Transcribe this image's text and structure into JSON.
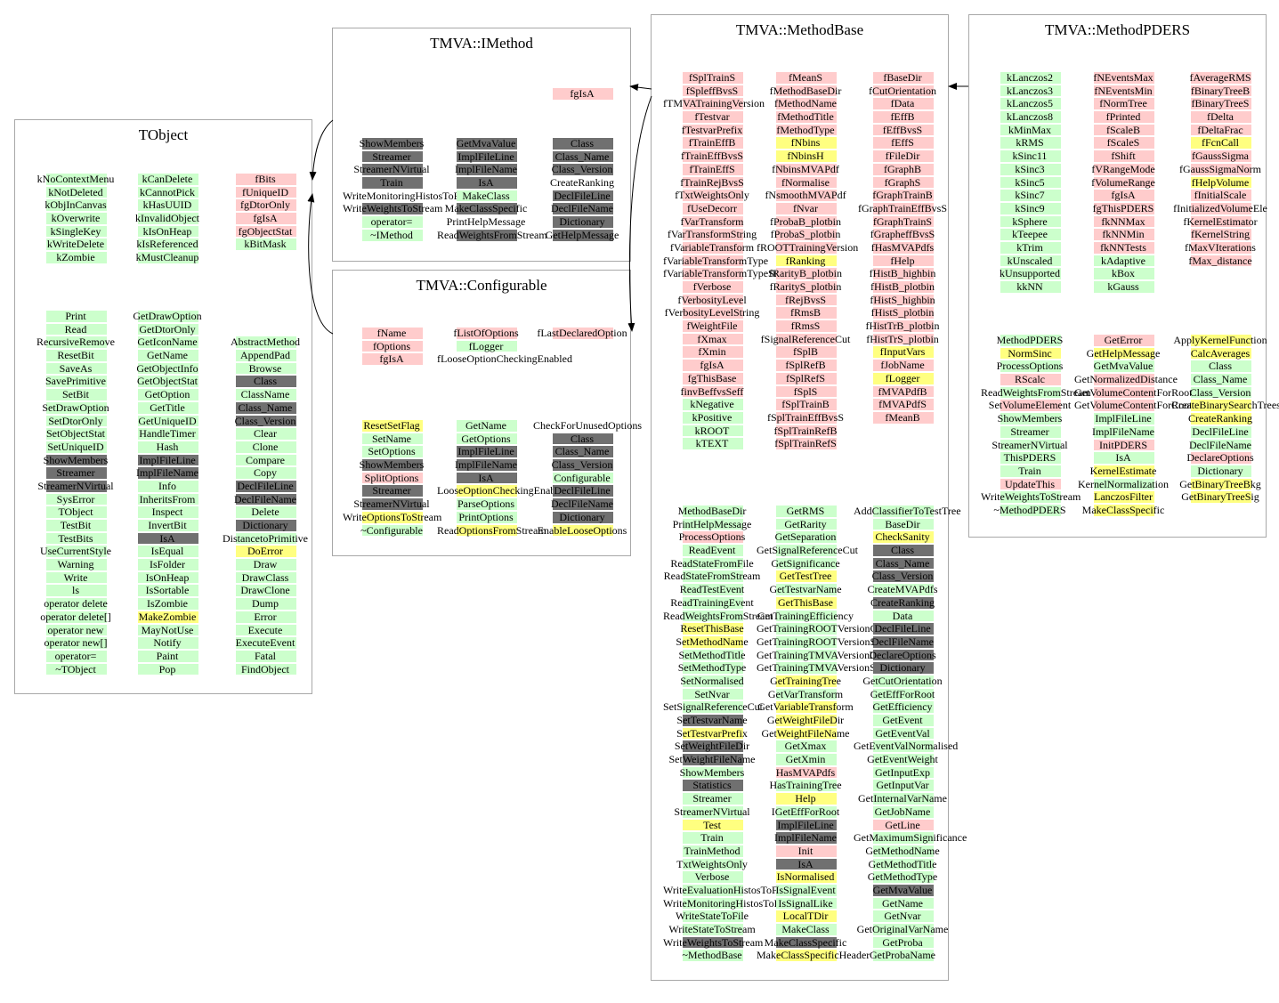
{
  "classes": [
    {
      "title": "TObject",
      "sections": [
        [
          [
            "kNoContextMenu",
            "kNotDeleted",
            "kObjInCanvas",
            "kOverwrite",
            "kSingleKey",
            "kWriteDelete",
            "kZombie"
          ],
          [
            "kCanDelete",
            "kCannotPick",
            "kHasUUID",
            "kInvalidObject",
            "kIsOnHeap",
            "kIsReferenced",
            "kMustCleanup"
          ],
          [
            "fBits",
            "fUniqueID",
            "fgDtorOnly",
            "fgIsA",
            "fgObjectStat",
            "kBitMask"
          ]
        ],
        [
          [
            "Print",
            "Read",
            "RecursiveRemove",
            "ResetBit",
            "SaveAs",
            "SavePrimitive",
            "SetBit",
            "SetDrawOption",
            "SetDtorOnly",
            "SetObjectStat",
            "SetUniqueID",
            "ShowMembers",
            "Streamer",
            "StreamerNVirtual",
            "SysError",
            "TObject",
            "TestBit",
            "TestBits",
            "UseCurrentStyle",
            "Warning",
            "Write",
            "ls",
            "operator delete",
            "operator delete[]",
            "operator new",
            "operator new[]",
            "operator=",
            "~TObject"
          ],
          [
            "GetDrawOption",
            "GetDtorOnly",
            "GetIconName",
            "GetName",
            "GetObjectInfo",
            "GetObjectStat",
            "GetOption",
            "GetTitle",
            "GetUniqueID",
            "HandleTimer",
            "Hash",
            "ImplFileLine",
            "ImplFileName",
            "Info",
            "InheritsFrom",
            "Inspect",
            "InvertBit",
            "IsA",
            "IsEqual",
            "IsFolder",
            "IsOnHeap",
            "IsSortable",
            "IsZombie",
            "MakeZombie",
            "MayNotUse",
            "Notify",
            "Paint",
            "Pop"
          ],
          [
            "",
            "",
            "AbstractMethod",
            "AppendPad",
            "Browse",
            "Class",
            "ClassName",
            "Class_Name",
            "Class_Version",
            "Clear",
            "Clone",
            "Compare",
            "Copy",
            "DeclFileLine",
            "DeclFileName",
            "Delete",
            "Dictionary",
            "DistancetoPrimitive",
            "DoError",
            "Draw",
            "DrawClass",
            "DrawClone",
            "Dump",
            "Error",
            "Execute",
            "ExecuteEvent",
            "Fatal",
            "FindObject"
          ]
        ]
      ]
    },
    {
      "title": "TMVA::IMethod",
      "sections": [
        [
          [],
          [],
          [
            "fgIsA"
          ]
        ],
        [
          [
            "ShowMembers",
            "Streamer",
            "StreamerNVirtual",
            "Train",
            "WriteMonitoringHistosToFile",
            "WriteWeightsToStream",
            "operator=",
            "~IMethod"
          ],
          [
            "GetMvaValue",
            "ImplFileLine",
            "ImplFileName",
            "IsA",
            "MakeClass",
            "MakeClassSpecific",
            "PrintHelpMessage",
            "ReadWeightsFromStream"
          ],
          [
            "Class",
            "Class_Name",
            "Class_Version",
            "CreateRanking",
            "DeclFileLine",
            "DeclFileName",
            "Dictionary",
            "GetHelpMessage"
          ]
        ]
      ]
    },
    {
      "title": "TMVA::Configurable",
      "sections": [
        [
          [
            "fName",
            "fOptions",
            "fgIsA"
          ],
          [
            "fListOfOptions",
            "fLogger",
            "fLooseOptionCheckingEnabled"
          ],
          [
            "fLastDeclaredOption"
          ]
        ],
        [
          [
            "ResetSetFlag",
            "SetName",
            "SetOptions",
            "ShowMembers",
            "SplitOptions",
            "Streamer",
            "StreamerNVirtual",
            "WriteOptionsToStream",
            "~Configurable"
          ],
          [
            "GetName",
            "GetOptions",
            "ImplFileLine",
            "ImplFileName",
            "IsA",
            "LooseOptionCheckingEnabled",
            "ParseOptions",
            "PrintOptions",
            "ReadOptionsFromStream"
          ],
          [
            "CheckForUnusedOptions",
            "Class",
            "Class_Name",
            "Class_Version",
            "Configurable",
            "DeclFileLine",
            "DeclFileName",
            "Dictionary",
            "EnableLooseOptions"
          ]
        ]
      ]
    },
    {
      "title": "TMVA::MethodBase",
      "sections": [
        [
          [
            "fSplTrainS",
            "fSpleffBvsS",
            "fTMVATrainingVersion",
            "fTestvar",
            "fTestvarPrefix",
            "fTrainEffB",
            "fTrainEffBvsS",
            "fTrainEffS",
            "fTrainRejBvsS",
            "fTxtWeightsOnly",
            "fUseDecorr",
            "fVarTransform",
            "fVarTransformString",
            "fVariableTransform",
            "fVariableTransformType",
            "fVariableTransformTypeString",
            "fVerbose",
            "fVerbosityLevel",
            "fVerbosityLevelString",
            "fWeightFile",
            "fXmax",
            "fXmin",
            "fgIsA",
            "fgThisBase",
            "finvBeffvsSeff",
            "kNegative",
            "kPositive",
            "kROOT",
            "kTEXT"
          ],
          [
            "fMeanS",
            "fMethodBaseDir",
            "fMethodName",
            "fMethodTitle",
            "fMethodType",
            "fNbins",
            "fNbinsH",
            "fNbinsMVAPdf",
            "fNormalise",
            "fNsmoothMVAPdf",
            "fNvar",
            "fProbaB_plotbin",
            "fProbaS_plotbin",
            "fROOTTrainingVersion",
            "fRanking",
            "fRarityB_plotbin",
            "fRarityS_plotbin",
            "fRejBvsS",
            "fRmsB",
            "fRmsS",
            "fSignalReferenceCut",
            "fSplB",
            "fSplRefB",
            "fSplRefS",
            "fSplS",
            "fSplTrainB",
            "fSplTrainEffBvsS",
            "fSplTrainRefB",
            "fSplTrainRefS"
          ],
          [
            "fBaseDir",
            "fCutOrientation",
            "fData",
            "fEffB",
            "fEffBvsS",
            "fEffS",
            "fFileDir",
            "fGraphB",
            "fGraphS",
            "fGraphTrainB",
            "fGraphTrainEffBvsS",
            "fGraphTrainS",
            "fGrapheffBvsS",
            "fHasMVAPdfs",
            "fHelp",
            "fHistB_highbin",
            "fHistB_plotbin",
            "fHistS_highbin",
            "fHistS_plotbin",
            "fHistTrB_plotbin",
            "fHistTrS_plotbin",
            "fInputVars",
            "fJobName",
            "fLogger",
            "fMVAPdfB",
            "fMVAPdfS",
            "fMeanB"
          ]
        ],
        [
          [
            "MethodBaseDir",
            "PrintHelpMessage",
            "ProcessOptions",
            "ReadEvent",
            "ReadStateFromFile",
            "ReadStateFromStream",
            "ReadTestEvent",
            "ReadTrainingEvent",
            "ReadWeightsFromStream",
            "ResetThisBase",
            "SetMethodName",
            "SetMethodTitle",
            "SetMethodType",
            "SetNormalised",
            "SetNvar",
            "SetSignalReferenceCut",
            "SetTestvarName",
            "SetTestvarPrefix",
            "SetWeightFileDir",
            "SetWeightFileName",
            "ShowMembers",
            "Statistics",
            "Streamer",
            "StreamerNVirtual",
            "Test",
            "Train",
            "TrainMethod",
            "TxtWeightsOnly",
            "Verbose",
            "WriteEvaluationHistosToFile",
            "WriteMonitoringHistosToFile",
            "WriteStateToFile",
            "WriteStateToStream",
            "WriteWeightsToStream",
            "~MethodBase"
          ],
          [
            "GetRMS",
            "GetRarity",
            "GetSeparation",
            "GetSignalReferenceCut",
            "GetSignificance",
            "GetTestTree",
            "GetTestvarName",
            "GetThisBase",
            "GetTrainingEfficiency",
            "GetTrainingROOTVersionCode",
            "GetTrainingROOTVersionString",
            "GetTrainingTMVAVersionCode",
            "GetTrainingTMVAVersionString",
            "GetTrainingTree",
            "GetVarTransform",
            "GetVariableTransform",
            "GetWeightFileDir",
            "GetWeightFileName",
            "GetXmax",
            "GetXmin",
            "HasMVAPdfs",
            "HasTrainingTree",
            "Help",
            "IGetEffForRoot",
            "ImplFileLine",
            "ImplFileName",
            "Init",
            "IsA",
            "IsNormalised",
            "IsSignalEvent",
            "IsSignalLike",
            "LocalTDir",
            "MakeClass",
            "MakeClassSpecific",
            "MakeClassSpecificHeader"
          ],
          [
            "AddClassifierToTestTree",
            "BaseDir",
            "CheckSanity",
            "Class",
            "Class_Name",
            "Class_Version",
            "CreateMVAPdfs",
            "CreateRanking",
            "Data",
            "DeclFileLine",
            "DeclFileName",
            "DeclareOptions",
            "Dictionary",
            "GetCutOrientation",
            "GetEffForRoot",
            "GetEfficiency",
            "GetEvent",
            "GetEventVal",
            "GetEventValNormalised",
            "GetEventWeight",
            "GetInputExp",
            "GetInputVar",
            "GetInternalVarName",
            "GetJobName",
            "GetLine",
            "GetMaximumSignificance",
            "GetMethodName",
            "GetMethodTitle",
            "GetMethodType",
            "GetMvaValue",
            "GetName",
            "GetNvar",
            "GetOriginalVarName",
            "GetProba",
            "GetProbaName"
          ]
        ]
      ]
    },
    {
      "title": "TMVA::MethodPDERS",
      "sections": [
        [
          [
            "kLanczos2",
            "kLanczos3",
            "kLanczos5",
            "kLanczos8",
            "kMinMax",
            "kRMS",
            "kSinc11",
            "kSinc3",
            "kSinc5",
            "kSinc7",
            "kSinc9",
            "kSphere",
            "kTeepee",
            "kTrim",
            "kUnscaled",
            "kUnsupported",
            "kkNN"
          ],
          [
            "fNEventsMax",
            "fNEventsMin",
            "fNormTree",
            "fPrinted",
            "fScaleB",
            "fScaleS",
            "fShift",
            "fVRangeMode",
            "fVolumeRange",
            "fgIsA",
            "fgThisPDERS",
            "fkNNMax",
            "fkNNMin",
            "fkNNTests",
            "kAdaptive",
            "kBox",
            "kGauss"
          ],
          [
            "fAverageRMS",
            "fBinaryTreeB",
            "fBinaryTreeS",
            "fDelta",
            "fDeltaFrac",
            "fFcnCall",
            "fGaussSigma",
            "fGaussSigmaNorm",
            "fHelpVolume",
            "fInitialScale",
            "fInitializedVolumeEle",
            "fKernelEstimator",
            "fKernelString",
            "fMaxVIterations",
            "fMax_distance"
          ]
        ],
        [
          [
            "MethodPDERS",
            "NormSinc",
            "ProcessOptions",
            "RScalc",
            "ReadWeightsFromStream",
            "SetVolumeElement",
            "ShowMembers",
            "Streamer",
            "StreamerNVirtual",
            "ThisPDERS",
            "Train",
            "UpdateThis",
            "WriteWeightsToStream",
            "~MethodPDERS"
          ],
          [
            "GetError",
            "GetHelpMessage",
            "GetMvaValue",
            "GetNormalizedDistance",
            "GetVolumeContentForRoot",
            "GetVolumeContentForRoot",
            "ImplFileLine",
            "ImplFileName",
            "InitPDERS",
            "IsA",
            "KernelEstimate",
            "KernelNormalization",
            "LanczosFilter",
            "MakeClassSpecific"
          ],
          [
            "ApplyKernelFunction",
            "CalcAverages",
            "Class",
            "Class_Name",
            "Class_Version",
            "CreateBinarySearchTrees",
            "CreateRanking",
            "DeclFileLine",
            "DeclFileName",
            "DeclareOptions",
            "Dictionary",
            "GetBinaryTreeBkg",
            "GetBinaryTreeSig"
          ]
        ]
      ]
    }
  ],
  "colors": {
    "public": "#ccffcc",
    "protected": "#ffff80",
    "private": "#ffcccc",
    "inherited": "#707070",
    "border": "#a8a8a8"
  },
  "kinds": [
    [
      [
        "g",
        "g",
        "g",
        "g",
        "g",
        "g",
        "g"
      ],
      [
        "g",
        "g",
        "g",
        "g",
        "g",
        "g",
        "g"
      ],
      [
        "r",
        "r",
        "r",
        "r",
        "r",
        "g"
      ]
    ],
    [
      [
        "g",
        "g",
        "g",
        "g",
        "g",
        "g",
        "g",
        "g",
        "g",
        "g",
        "g",
        "d",
        "d",
        "d",
        "g",
        "g",
        "g",
        "g",
        "g",
        "g",
        "g",
        "g",
        "g",
        "g",
        "g",
        "g",
        "g",
        "g"
      ],
      [
        "g",
        "g",
        "g",
        "g",
        "g",
        "g",
        "g",
        "g",
        "g",
        "g",
        "g",
        "d",
        "d",
        "g",
        "g",
        "g",
        "g",
        "d",
        "g",
        "g",
        "g",
        "g",
        "g",
        "y",
        "g",
        "g",
        "g",
        "g"
      ],
      [
        "n",
        "n",
        "g",
        "g",
        "g",
        "d",
        "g",
        "d",
        "d",
        "g",
        "g",
        "g",
        "g",
        "d",
        "d",
        "g",
        "d",
        "g",
        "y",
        "g",
        "g",
        "g",
        "g",
        "g",
        "g",
        "g",
        "g",
        "g"
      ]
    ],
    [
      [],
      [],
      [
        "r"
      ]
    ],
    [
      [
        "d",
        "d",
        "d",
        "d",
        "n",
        "d",
        "g",
        "g"
      ],
      [
        "d",
        "d",
        "d",
        "d",
        "g",
        "d",
        "n",
        "d"
      ],
      [
        "d",
        "d",
        "d",
        "n",
        "d",
        "d",
        "d",
        "d"
      ]
    ],
    [
      [
        "r",
        "r",
        "r"
      ],
      [
        "r",
        "g",
        "n"
      ],
      [
        "r"
      ]
    ],
    [
      [
        "y",
        "g",
        "g",
        "d",
        "r",
        "d",
        "d",
        "y",
        "g"
      ],
      [
        "g",
        "g",
        "d",
        "d",
        "d",
        "y",
        "g",
        "g",
        "y"
      ],
      [
        "n",
        "d",
        "d",
        "d",
        "g",
        "d",
        "d",
        "d",
        "y"
      ]
    ],
    [
      [
        "r",
        "r",
        "r",
        "r",
        "r",
        "r",
        "r",
        "r",
        "r",
        "r",
        "r",
        "r",
        "r",
        "r",
        "r",
        "r",
        "r",
        "r",
        "r",
        "r",
        "r",
        "r",
        "r",
        "r",
        "r",
        "g",
        "g",
        "g",
        "g"
      ],
      [
        "r",
        "r",
        "r",
        "r",
        "r",
        "y",
        "y",
        "r",
        "r",
        "r",
        "r",
        "r",
        "r",
        "r",
        "y",
        "r",
        "r",
        "r",
        "r",
        "r",
        "r",
        "r",
        "r",
        "r",
        "r",
        "r",
        "r",
        "r",
        "r"
      ],
      [
        "r",
        "r",
        "r",
        "r",
        "r",
        "r",
        "r",
        "r",
        "r",
        "r",
        "r",
        "r",
        "r",
        "r",
        "r",
        "r",
        "r",
        "r",
        "r",
        "r",
        "r",
        "y",
        "r",
        "y",
        "r",
        "r",
        "r"
      ]
    ],
    [
      [
        "g",
        "g",
        "r",
        "g",
        "g",
        "g",
        "g",
        "g",
        "g",
        "y",
        "y",
        "g",
        "g",
        "g",
        "g",
        "g",
        "d",
        "y",
        "d",
        "d",
        "g",
        "d",
        "g",
        "g",
        "y",
        "g",
        "g",
        "g",
        "g",
        "g",
        "g",
        "g",
        "g",
        "d",
        "g"
      ],
      [
        "g",
        "g",
        "g",
        "g",
        "g",
        "y",
        "g",
        "y",
        "g",
        "g",
        "g",
        "g",
        "g",
        "y",
        "g",
        "y",
        "y",
        "y",
        "g",
        "g",
        "r",
        "g",
        "y",
        "g",
        "d",
        "d",
        "r",
        "d",
        "y",
        "g",
        "g",
        "y",
        "g",
        "d",
        "y"
      ],
      [
        "g",
        "g",
        "y",
        "d",
        "d",
        "d",
        "g",
        "d",
        "g",
        "d",
        "d",
        "d",
        "d",
        "g",
        "g",
        "g",
        "g",
        "g",
        "g",
        "g",
        "g",
        "g",
        "g",
        "g",
        "r",
        "g",
        "g",
        "g",
        "g",
        "d",
        "g",
        "g",
        "g",
        "g",
        "g"
      ]
    ],
    [
      [
        "g",
        "g",
        "g",
        "g",
        "g",
        "g",
        "g",
        "g",
        "g",
        "g",
        "g",
        "g",
        "g",
        "g",
        "g",
        "g",
        "g"
      ],
      [
        "r",
        "r",
        "r",
        "r",
        "r",
        "r",
        "r",
        "r",
        "r",
        "r",
        "r",
        "r",
        "r",
        "r",
        "g",
        "g",
        "g"
      ],
      [
        "r",
        "r",
        "r",
        "r",
        "r",
        "y",
        "r",
        "r",
        "y",
        "r",
        "r",
        "r",
        "r",
        "r",
        "r"
      ]
    ],
    [
      [
        "g",
        "y",
        "g",
        "r",
        "g",
        "r",
        "g",
        "g",
        "g",
        "g",
        "g",
        "r",
        "g",
        "g"
      ],
      [
        "r",
        "y",
        "g",
        "r",
        "r",
        "r",
        "g",
        "g",
        "r",
        "g",
        "y",
        "g",
        "y",
        "y"
      ],
      [
        "y",
        "y",
        "g",
        "g",
        "g",
        "y",
        "y",
        "g",
        "g",
        "r",
        "g",
        "y",
        "y"
      ]
    ]
  ]
}
